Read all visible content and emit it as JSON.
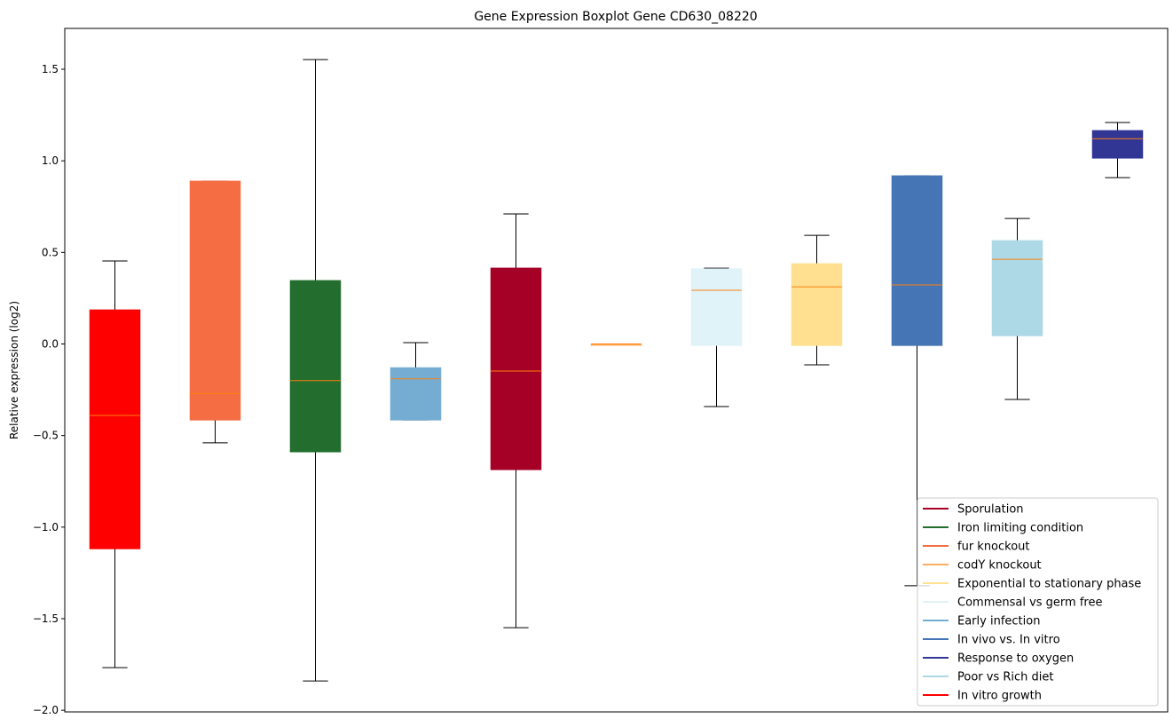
{
  "chart_data": {
    "type": "boxplot",
    "title": "Gene Expression Boxplot Gene CD630_08220",
    "xlabel": "",
    "ylabel": "Relative expression (log2)",
    "ylim": [
      -2.009,
      1.723
    ],
    "yticks": [
      -2.0,
      -1.5,
      -1.0,
      -0.5,
      0.0,
      0.5,
      1.0,
      1.5
    ],
    "ytick_labels": [
      "−2.0",
      "−1.5",
      "−1.0",
      "−0.5",
      "0.0",
      "0.5",
      "1.0",
      "1.5"
    ],
    "grid": false,
    "legend_position": "lower-right",
    "median_color": "#ff7f0e",
    "boxes": [
      {
        "name": "In vitro growth",
        "color": "#ff0000",
        "whislo": -1.767,
        "q1": -1.118,
        "med": -0.39,
        "q3": 0.186,
        "whishi": 0.453
      },
      {
        "name": "fur knockout",
        "color": "#f46d43",
        "whislo": -0.54,
        "q1": -0.415,
        "med": -0.27,
        "q3": 0.889,
        "whishi": 0.889
      },
      {
        "name": "Iron limiting condition",
        "color": "#236e2f",
        "whislo": -1.84,
        "q1": -0.589,
        "med": -0.2,
        "q3": 0.346,
        "whishi": 1.553
      },
      {
        "name": "Early infection",
        "color": "#74add1",
        "whislo": -0.415,
        "q1": -0.415,
        "med": -0.19,
        "q3": -0.13,
        "whishi": 0.007
      },
      {
        "name": "Sporulation",
        "color": "#a50026",
        "whislo": -1.549,
        "q1": -0.686,
        "med": -0.148,
        "q3": 0.414,
        "whishi": 0.71
      },
      {
        "name": "codY knockout",
        "color": "#fdae61",
        "whislo": 0.0,
        "q1": 0.0,
        "med": 0.0,
        "q3": 0.0,
        "whishi": 0.0
      },
      {
        "name": "Commensal vs germ free",
        "color": "#e0f3f8",
        "whislo": -0.342,
        "q1": -0.008,
        "med": 0.293,
        "q3": 0.41,
        "whishi": 0.414
      },
      {
        "name": "Exponential to stationary phase",
        "color": "#fee090",
        "whislo": -0.114,
        "q1": -0.008,
        "med": 0.312,
        "q3": 0.438,
        "whishi": 0.593
      },
      {
        "name": "In vivo vs. In vitro",
        "color": "#4575b4",
        "whislo": -1.32,
        "q1": -0.008,
        "med": 0.322,
        "q3": 0.918,
        "whishi": 0.918
      },
      {
        "name": "Poor vs Rich diet",
        "color": "#add8e6",
        "whislo": -0.303,
        "q1": 0.045,
        "med": 0.462,
        "q3": 0.564,
        "whishi": 0.685
      },
      {
        "name": "Response to oxygen",
        "color": "#313695",
        "whislo": 0.908,
        "q1": 1.015,
        "med": 1.121,
        "q3": 1.165,
        "whishi": 1.209
      }
    ],
    "legend": [
      {
        "label": "Sporulation",
        "color": "#a50026"
      },
      {
        "label": "Iron limiting condition",
        "color": "#236e2f"
      },
      {
        "label": "fur knockout",
        "color": "#f46d43"
      },
      {
        "label": "codY knockout",
        "color": "#fdae61"
      },
      {
        "label": "Exponential to stationary phase",
        "color": "#fee090"
      },
      {
        "label": "Commensal vs germ free",
        "color": "#e0f3f8"
      },
      {
        "label": "Early infection",
        "color": "#74add1"
      },
      {
        "label": "In vivo vs. In vitro",
        "color": "#4575b4"
      },
      {
        "label": "Response to oxygen",
        "color": "#313695"
      },
      {
        "label": "Poor vs Rich diet",
        "color": "#add8e6"
      },
      {
        "label": "In vitro growth",
        "color": "#ff0000"
      }
    ]
  }
}
